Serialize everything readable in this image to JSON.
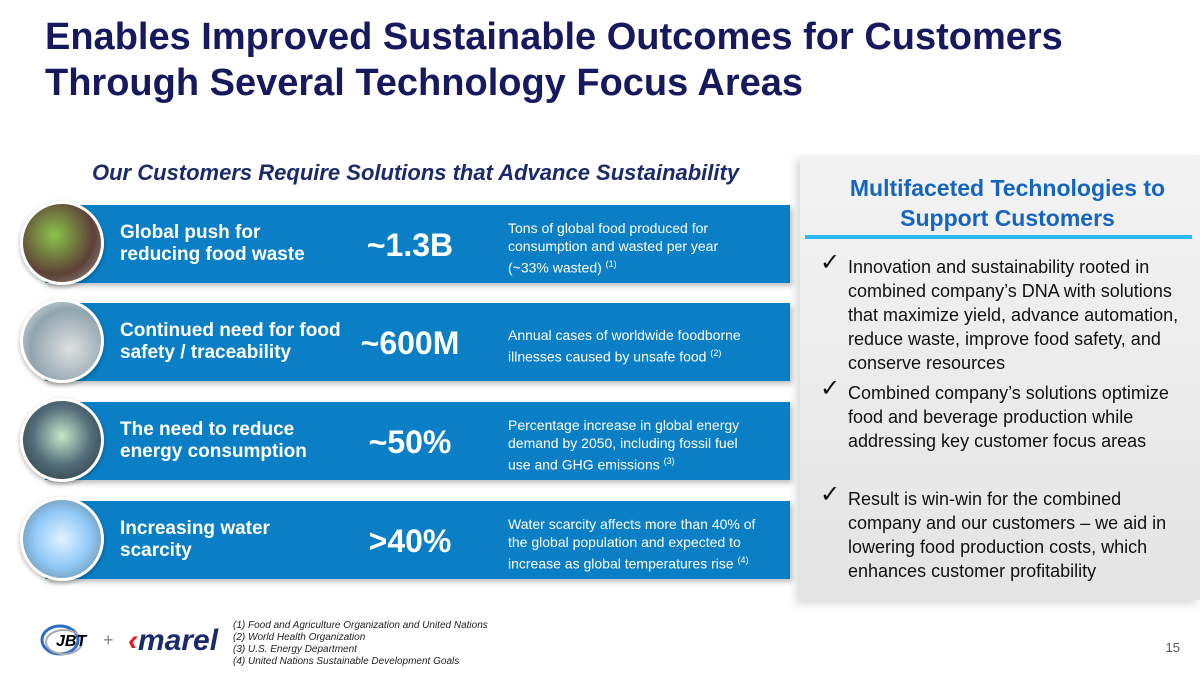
{
  "title": [
    "Enables Improved Sustainable Outcomes for Customers",
    "Through Several Technology Focus Areas"
  ],
  "subtitle": "Our Customers Require Solutions that Advance Sustainability",
  "rows": [
    {
      "head": [
        "Global push for",
        "reducing food waste"
      ],
      "value": "~1.3B",
      "desc": [
        "Tons of global food produced for",
        "consumption and wasted per year",
        "(~33% wasted)"
      ],
      "ref": "(1)"
    },
    {
      "head": [
        "Continued need for food",
        "safety / traceability"
      ],
      "value": "~600M",
      "desc": [
        "Annual cases of worldwide foodborne",
        "illnesses caused by unsafe food"
      ],
      "ref": "(2)"
    },
    {
      "head": [
        "The need to reduce",
        "energy consumption"
      ],
      "value": "~50%",
      "desc": [
        "Percentage increase in global energy",
        "demand by 2050, including fossil fuel",
        "use and GHG emissions"
      ],
      "ref": "(3)"
    },
    {
      "head": [
        "Increasing water",
        "scarcity"
      ],
      "value": ">40%",
      "desc": [
        "Water scarcity affects more than 40% of",
        "the global population and expected to",
        "increase as global temperatures rise"
      ],
      "ref": "(4)"
    }
  ],
  "panel": {
    "title": [
      "Multifaceted Technologies to",
      "Support Customers"
    ],
    "bullets": [
      "Innovation and sustainability rooted in combined company’s DNA with solutions that maximize yield, advance automation, reduce waste, improve food safety, and conserve resources",
      "Combined company’s solutions optimize food and beverage production while addressing key customer focus areas",
      "Result is win-win for the combined company and our customers – we aid in lowering food production costs, which enhances customer profitability"
    ]
  },
  "footnotes": [
    "(1) Food and Agriculture Organization and United Nations",
    "(2) World Health Organization",
    "(3) U.S. Energy Department",
    "(4) United Nations Sustainable Development Goals"
  ],
  "logos": {
    "jbt": "JBT",
    "plus": "+",
    "marel": "marel"
  },
  "page_number": "15",
  "colors": {
    "title": "#17195e",
    "band": "#0a7fc6",
    "panel_title": "#1565c0",
    "accent_line": "#29b6f6"
  }
}
